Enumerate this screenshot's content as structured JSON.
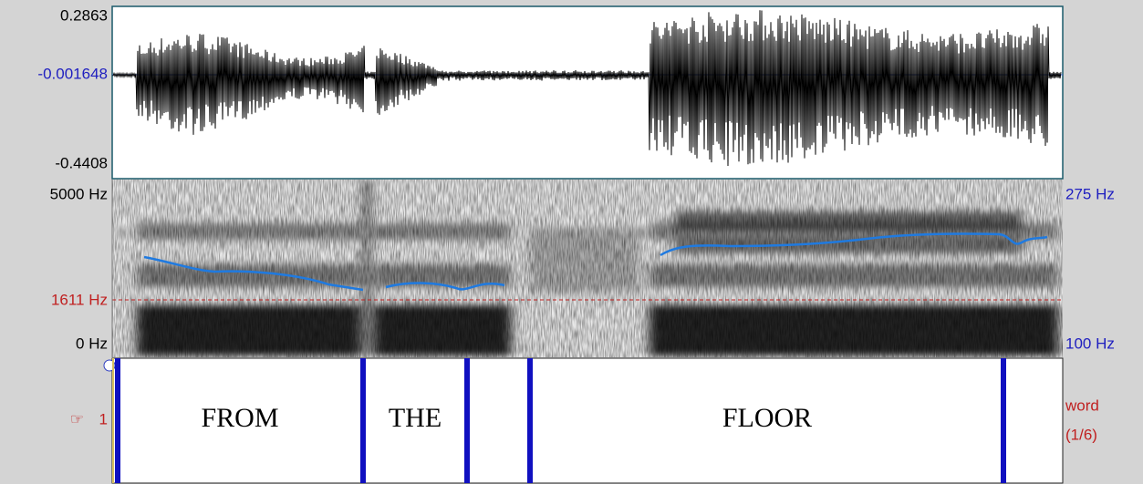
{
  "waveform": {
    "top_label": "0.2863",
    "mid_label": "-0.001648",
    "bottom_label": "-0.4408"
  },
  "spectrogram": {
    "left_labels": [
      "5000 Hz",
      "1611 Hz",
      "0 Hz"
    ],
    "right_labels": [
      "275 Hz",
      "100 Hz"
    ]
  },
  "tier": {
    "marker": "☞",
    "number": "1",
    "name": "word",
    "count": "(1/6)",
    "intervals": [
      "FROM",
      "THE",
      "FLOOR"
    ]
  }
}
